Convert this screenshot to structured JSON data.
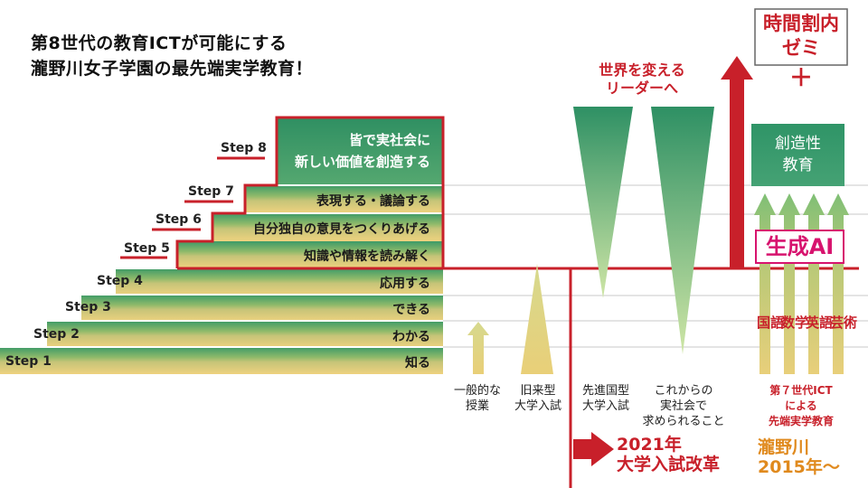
{
  "title": {
    "line1": "第8世代の教育ICTが可能にする",
    "line2": "瀧野川女子学園の最先端実学教育！"
  },
  "steps": [
    {
      "label": "Step 1",
      "text": "知る"
    },
    {
      "label": "Step 2",
      "text": "わかる"
    },
    {
      "label": "Step 3",
      "text": "できる"
    },
    {
      "label": "Step 4",
      "text": "応用する"
    },
    {
      "label": "Step 5",
      "text": "知識や情報を読み解く"
    },
    {
      "label": "Step 6",
      "text": "自分独自の意見をつくりあげる"
    },
    {
      "label": "Step 7",
      "text": "表現する・議論する"
    },
    {
      "label": "Step 8",
      "text_line1": "皆で実社会に",
      "text_line2": "新しい価値を創造する"
    }
  ],
  "captions": {
    "general": {
      "line1": "一般的な",
      "line2": "授業"
    },
    "old_exam": {
      "line1": "旧来型",
      "line2": "大学入試"
    },
    "advanced_exam": {
      "line1": "先進国型",
      "line2": "大学入試"
    },
    "future_society": {
      "line1": "これからの",
      "line2": "実社会で",
      "line3": "求められること"
    },
    "world_leader": {
      "line1": "世界を変える",
      "line2": "リーダーへ"
    }
  },
  "reform": {
    "line1": "2021年",
    "line2": "大学入試改革"
  },
  "takinogawa": {
    "seminar_line1": "時間割内",
    "seminar_line2": "ゼミ",
    "plus": "＋",
    "creativity_line1": "創造性",
    "creativity_line2": "教育",
    "gen_ai": "生成AI",
    "subjects": [
      "国語",
      "数学",
      "英語",
      "芸術"
    ],
    "ict_line1": "第７世代ICT",
    "ict_line2": "による",
    "ict_line3": "先端実学教育",
    "since_line1": "瀧野川",
    "since_line2": "2015年〜"
  },
  "colors": {
    "accent_red": "#c8202a",
    "gold": "#e8cf78",
    "green_dark": "#2f9466",
    "green_light": "#93b867",
    "magenta": "#d7136e"
  }
}
